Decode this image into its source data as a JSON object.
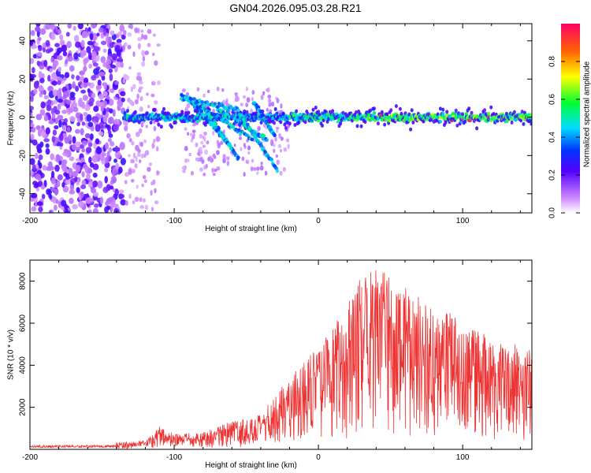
{
  "title": "GN04.2026.095.03.28.R21",
  "chart_data": [
    {
      "type": "heatmap",
      "xlabel": "Height of straight line (km)",
      "ylabel": "Frequency (Hz)",
      "xlim": [
        -200,
        148
      ],
      "ylim": [
        -50,
        49
      ],
      "xticks": [
        -200,
        -100,
        0,
        100
      ],
      "yticks": [
        -40,
        -20,
        0,
        20,
        40
      ],
      "colorbar": {
        "label": "Normalized spectral amplitude",
        "range": [
          0,
          1
        ],
        "ticks": [
          0.0,
          0.2,
          0.4,
          0.6,
          0.8
        ]
      },
      "features": {
        "noise_region_x": [
          -200,
          -135
        ],
        "carrier_frequency_hz": 0,
        "carrier_start_x": -135,
        "carrier_bright_x": [
          -10,
          148
        ],
        "broadened_region_x": [
          -95,
          -20
        ],
        "broadened_spread_hz": [
          -30,
          15
        ]
      },
      "grid": false
    },
    {
      "type": "line",
      "xlabel": "Height of straight line (km)",
      "ylabel": "SNR (10 * v/v)",
      "xlim": [
        -200,
        148
      ],
      "ylim": [
        0,
        9000
      ],
      "xticks": [
        -200,
        -100,
        0,
        100
      ],
      "yticks": [
        2000,
        4000,
        6000,
        8000
      ],
      "series": [
        {
          "color": "#ee3333",
          "envelope_x": [
            -200,
            -150,
            -120,
            -110,
            -100,
            -80,
            -60,
            -40,
            -20,
            0,
            20,
            30,
            40,
            60,
            80,
            100,
            120,
            148
          ],
          "envelope_y": [
            300,
            300,
            400,
            1100,
            700,
            800,
            1300,
            1600,
            3500,
            4800,
            6500,
            8000,
            8500,
            7500,
            6500,
            6000,
            5000,
            4600
          ]
        }
      ],
      "grid": false
    }
  ]
}
